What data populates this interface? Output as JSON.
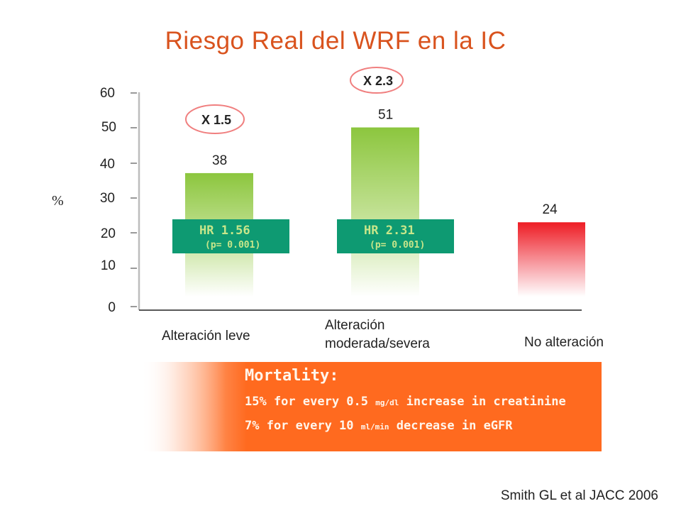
{
  "title": "Riesgo Real del WRF en la IC",
  "chart_data": {
    "type": "bar",
    "categories": [
      "Alteración leve",
      "Alteración moderada/severa",
      "No alteración"
    ],
    "values": [
      38,
      51,
      24
    ],
    "ylabel": "%",
    "ylim": [
      0,
      60
    ],
    "yticks": [
      0,
      10,
      20,
      30,
      40,
      50,
      60
    ],
    "bar_colors": [
      "#8cc63e",
      "#8cc63e",
      "#ee1c24"
    ],
    "multipliers": [
      {
        "category": "Alteración leve",
        "label": "X 1.5"
      },
      {
        "category": "Alteración moderada/severa",
        "label": "X 2.3"
      }
    ],
    "hr_boxes": [
      {
        "category": "Alteración leve",
        "hr": "HR 1.56",
        "p": "(p= 0.001)"
      },
      {
        "category": "Alteración moderada/severa",
        "hr": "HR 2.31",
        "p": "(p= 0.001)"
      }
    ],
    "grid": false,
    "legend": "none"
  },
  "mortality": {
    "title": "Mortality:",
    "line1": {
      "pre": "15% for every 0.5 ",
      "unit": "mg/dl",
      "post": " increase in creatinine"
    },
    "line2": {
      "pre": "7% for every 10 ",
      "unit": "ml/min",
      "post": " decrease in eGFR"
    }
  },
  "citation": "Smith GL et al JACC 2006",
  "colors": {
    "title": "#d9531e",
    "hr_box": "#0e9a72",
    "hr_text": "#c8e68a",
    "ellipse": "#f07f7f",
    "mortality_bg": "#ff6a1f"
  }
}
